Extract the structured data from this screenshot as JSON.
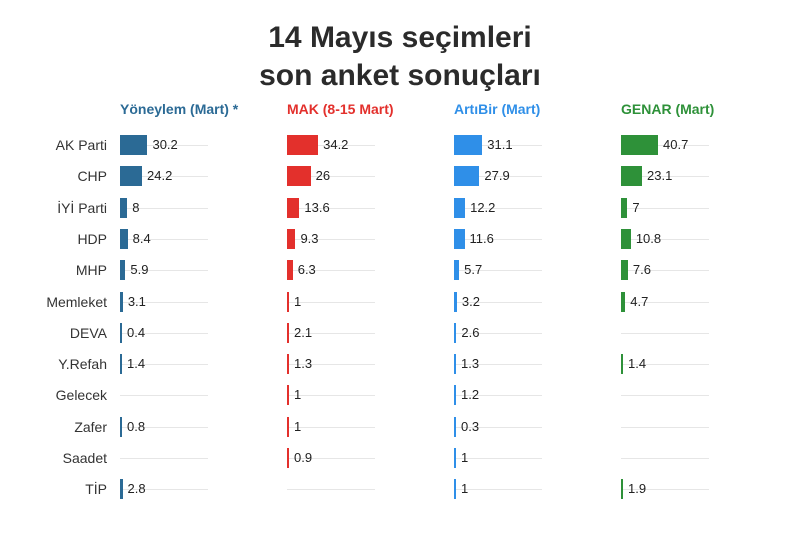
{
  "title_line1": "14 Mayıs seçimleri",
  "title_line2": "son anket sonuçları",
  "chart_data": {
    "type": "bar",
    "orientation": "horizontal",
    "title": "14 Mayıs seçimleri son anket sonuçları",
    "categories": [
      "AK Parti",
      "CHP",
      "İYİ Parti",
      "HDP",
      "MHP",
      "Memleket",
      "DEVA",
      "Y.Refah",
      "Gelecek",
      "Zafer",
      "Saadet",
      "TİP"
    ],
    "series": [
      {
        "name": "Yöneylem (Mart) *",
        "color": "#2b6a95",
        "values": [
          30.2,
          24.2,
          8,
          8.4,
          5.9,
          3.1,
          0.4,
          1.4,
          null,
          0.8,
          null,
          2.8
        ]
      },
      {
        "name": "MAK (8-15 Mart)",
        "color": "#e3302c",
        "values": [
          34.2,
          26,
          13.6,
          9.3,
          6.3,
          1,
          2.1,
          1.3,
          1,
          1,
          0.9,
          null
        ]
      },
      {
        "name": "ArtıBir (Mart)",
        "color": "#2f8fe8",
        "values": [
          31.1,
          27.9,
          12.2,
          11.6,
          5.7,
          3.2,
          2.6,
          1.3,
          1.2,
          0.3,
          1,
          1
        ]
      },
      {
        "name": "GENAR (Mart)",
        "color": "#2e9139",
        "values": [
          40.7,
          23.1,
          7,
          10.8,
          7.6,
          4.7,
          null,
          1.4,
          null,
          null,
          null,
          1.9
        ]
      }
    ],
    "grid": false,
    "legend": "column-headers"
  }
}
